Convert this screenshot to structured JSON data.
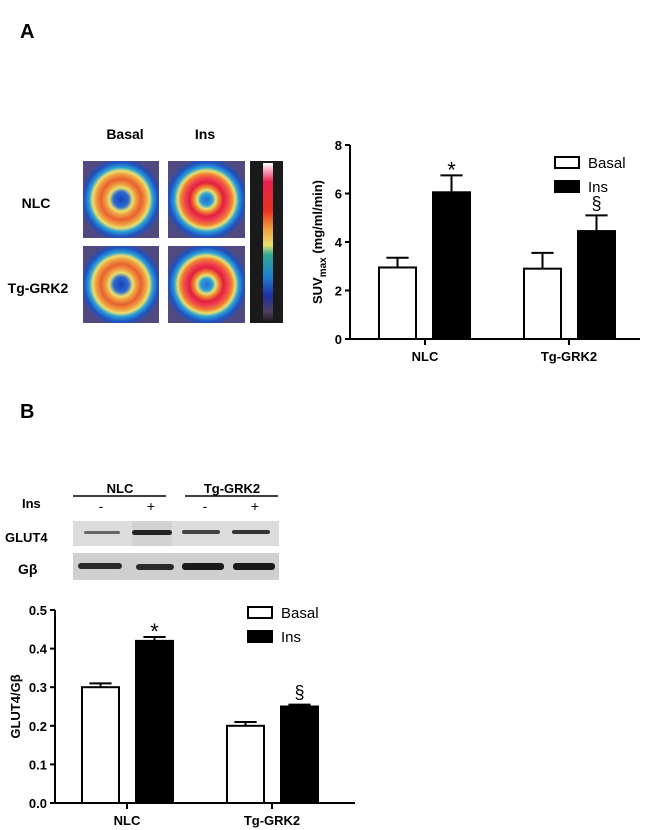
{
  "panel_a": {
    "label": "A",
    "image_columns": [
      "Basal",
      "Ins"
    ],
    "image_rows": [
      "NLC",
      "Tg-GRK2"
    ]
  },
  "panel_b": {
    "label": "B",
    "blot": {
      "groups": [
        "NLC",
        "Tg-GRK2"
      ],
      "row_label_ins": "Ins",
      "lanes": [
        "-",
        "+",
        "-",
        "+"
      ],
      "rows": [
        "GLUT4",
        "Gβ"
      ]
    }
  },
  "chart_data": [
    {
      "type": "bar",
      "title": "",
      "xlabel": "",
      "ylabel": "SUV",
      "ylabel_sub": "max",
      "ylabel_units": " (mg/ml/min)",
      "categories": [
        "NLC",
        "Tg-GRK2"
      ],
      "ylim": [
        0,
        8
      ],
      "yticks": [
        "0",
        "2",
        "4",
        "6",
        "8"
      ],
      "ytick_values": [
        0,
        2,
        4,
        6,
        8
      ],
      "legend": "top-right",
      "series": [
        {
          "name": "Basal",
          "values": [
            2.95,
            2.9
          ],
          "errors": [
            0.4,
            0.65
          ],
          "color": "#ffffff"
        },
        {
          "name": "Ins",
          "values": [
            6.05,
            4.45
          ],
          "errors": [
            0.7,
            0.65
          ],
          "color": "#000000"
        }
      ],
      "annotations": [
        {
          "series": "Ins",
          "category": "NLC",
          "text": "*"
        },
        {
          "series": "Ins",
          "category": "Tg-GRK2",
          "text": "§"
        }
      ]
    },
    {
      "type": "bar",
      "title": "",
      "xlabel": "",
      "ylabel": "GLUT4/Gβ",
      "categories": [
        "NLC",
        "Tg-GRK2"
      ],
      "ylim": [
        0,
        0.5
      ],
      "yticks": [
        "0.0",
        "0.1",
        "0.2",
        "0.3",
        "0.4",
        "0.5"
      ],
      "ytick_values": [
        0,
        0.1,
        0.2,
        0.3,
        0.4,
        0.5
      ],
      "legend": "top-right",
      "series": [
        {
          "name": "Basal",
          "values": [
            0.3,
            0.2
          ],
          "errors": [
            0.01,
            0.01
          ],
          "color": "#ffffff"
        },
        {
          "name": "Ins",
          "values": [
            0.42,
            0.25
          ],
          "errors": [
            0.01,
            0.005
          ],
          "color": "#000000"
        }
      ],
      "annotations": [
        {
          "series": "Ins",
          "category": "NLC",
          "text": "*"
        },
        {
          "series": "Ins",
          "category": "Tg-GRK2",
          "text": "§"
        }
      ]
    }
  ]
}
